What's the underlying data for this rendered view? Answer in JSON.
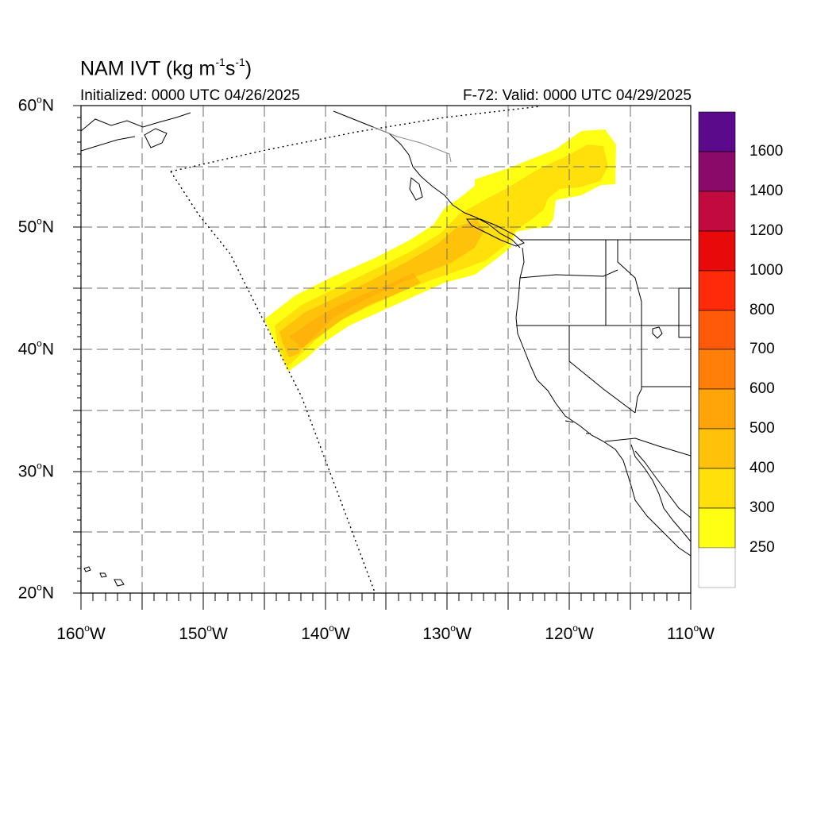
{
  "header": {
    "title_main": "NAM IVT (kg m",
    "title_sup1": "-1",
    "title_mid": "s",
    "title_sup2": "-1",
    "title_end": ")",
    "initialized": "Initialized: 0000 UTC 04/26/2025",
    "valid": "F-72: Valid: 0000 UTC 04/29/2025"
  },
  "axes": {
    "lat_labels": [
      {
        "num": "60",
        "hemi": "N"
      },
      {
        "num": "50",
        "hemi": "N"
      },
      {
        "num": "40",
        "hemi": "N"
      },
      {
        "num": "30",
        "hemi": "N"
      },
      {
        "num": "20",
        "hemi": "N"
      }
    ],
    "lon_labels": [
      {
        "num": "160",
        "hemi": "W"
      },
      {
        "num": "150",
        "hemi": "W"
      },
      {
        "num": "140",
        "hemi": "W"
      },
      {
        "num": "130",
        "hemi": "W"
      },
      {
        "num": "120",
        "hemi": "W"
      },
      {
        "num": "110",
        "hemi": "W"
      }
    ],
    "lat_range": [
      20,
      60
    ],
    "lon_range": [
      -160,
      -110
    ],
    "grid": "dashed every 5 degrees"
  },
  "colorbar": {
    "labels": [
      "1600",
      "1400",
      "1200",
      "1000",
      "800",
      "700",
      "600",
      "500",
      "400",
      "300",
      "250"
    ],
    "colors": [
      "#5c0a8c",
      "#8a0a6a",
      "#c20a40",
      "#e80a0a",
      "#ff2a0a",
      "#ff5a0a",
      "#ff7f0a",
      "#ffa50a",
      "#ffc20a",
      "#ffe00a",
      "#ffff14",
      "#ffffff"
    ]
  },
  "plot_colors": {
    "ivt_250": "#ffff14",
    "ivt_300": "#ffe00a",
    "ivt_400": "#ffc20a",
    "ivt_500": "#ffa50a"
  }
}
